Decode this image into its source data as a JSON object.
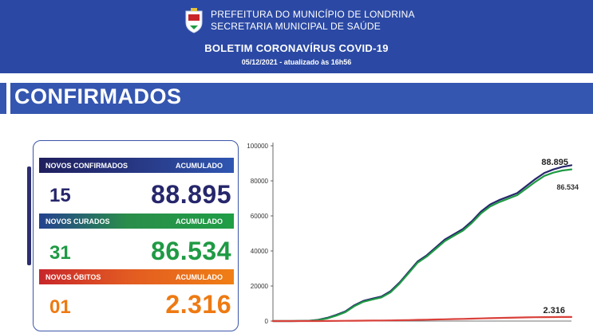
{
  "header": {
    "org_line1": "PREFEITURA DO MUNICÍPIO DE LONDRINA",
    "org_line2": "SECRETARIA MUNICIPAL DE SAÚDE",
    "title": "BOLETIM CORONAVÍRUS COVID-19",
    "date": "05/12/2021 - atualizado às 16h56",
    "crest_icon": "city-coat-of-arms-icon"
  },
  "section": {
    "title": "CONFIRMADOS"
  },
  "stats": {
    "confirmed": {
      "label": "NOVOS CONFIRMADOS",
      "acc_label": "ACUMULADO",
      "new": "15",
      "total": "88.895"
    },
    "recovered": {
      "label": "NOVOS CURADOS",
      "acc_label": "ACUMULADO",
      "new": "31",
      "total": "86.534"
    },
    "deaths": {
      "label": "NOVOS ÓBITOS",
      "acc_label": "ACUMULADO",
      "new": "01",
      "total": "2.316"
    }
  },
  "colors": {
    "header_blue": "#2b49a4",
    "confirmed": "#26266c",
    "recovered": "#1f9a44",
    "deaths": "#ee7a12",
    "deaths_line": "#d9403a"
  },
  "chart_data": {
    "type": "line",
    "ylim": [
      0,
      100000
    ],
    "yticks": [
      "0",
      "20000",
      "40000",
      "60000",
      "80000",
      "100000"
    ],
    "grid": false,
    "x_points": 34,
    "series": [
      {
        "name": "",
        "color": "#26266c",
        "values": [
          0,
          0,
          0,
          50,
          200,
          700,
          1800,
          3500,
          5500,
          9000,
          11500,
          12800,
          14000,
          17000,
          22000,
          28000,
          34000,
          37500,
          42000,
          46500,
          49500,
          52500,
          57000,
          62500,
          66500,
          69000,
          71000,
          73000,
          77000,
          81000,
          84500,
          86500,
          88000,
          88895
        ],
        "end_label": "88.895"
      },
      {
        "name": "",
        "color": "#1f9a44",
        "values": [
          0,
          0,
          0,
          30,
          150,
          550,
          1500,
          3100,
          5100,
          8500,
          11000,
          12300,
          13500,
          16400,
          21400,
          27300,
          33300,
          36800,
          41200,
          45600,
          48700,
          51600,
          56000,
          61400,
          65300,
          67800,
          69800,
          71800,
          75600,
          79400,
          82800,
          84700,
          85900,
          86534
        ],
        "end_label": "86.534"
      },
      {
        "name": "",
        "color": "#d9403a",
        "values": [
          0,
          0,
          0,
          2,
          8,
          20,
          45,
          80,
          120,
          170,
          220,
          270,
          320,
          380,
          460,
          560,
          680,
          790,
          900,
          1010,
          1120,
          1230,
          1350,
          1480,
          1620,
          1760,
          1880,
          1990,
          2090,
          2170,
          2230,
          2270,
          2300,
          2316
        ],
        "end_label": "2.316"
      }
    ]
  }
}
